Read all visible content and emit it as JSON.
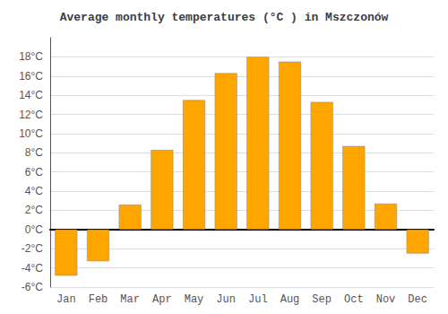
{
  "chart_data": {
    "type": "bar",
    "title": "Average monthly temperatures (°C ) in Mszczonów",
    "categories": [
      "Jan",
      "Feb",
      "Mar",
      "Apr",
      "May",
      "Jun",
      "Jul",
      "Aug",
      "Sep",
      "Oct",
      "Nov",
      "Dec"
    ],
    "values": [
      -4.8,
      -3.3,
      2.6,
      8.3,
      13.5,
      16.3,
      18.0,
      17.5,
      13.3,
      8.7,
      2.7,
      -2.5
    ],
    "color": "#FFA500",
    "ylim": [
      -6,
      20
    ],
    "yticks": [
      {
        "value": -6,
        "label": "-6°C"
      },
      {
        "value": -4,
        "label": "-4°C"
      },
      {
        "value": -2,
        "label": "-2°C"
      },
      {
        "value": 0,
        "label": "0°C"
      },
      {
        "value": 2,
        "label": "2°C"
      },
      {
        "value": 4,
        "label": "4°C"
      },
      {
        "value": 6,
        "label": "6°C"
      },
      {
        "value": 8,
        "label": "8°C"
      },
      {
        "value": 10,
        "label": "10°C"
      },
      {
        "value": 12,
        "label": "12°C"
      },
      {
        "value": 14,
        "label": "14°C"
      },
      {
        "value": 16,
        "label": "16°C"
      },
      {
        "value": 18,
        "label": "18°C"
      }
    ],
    "grid": true
  }
}
